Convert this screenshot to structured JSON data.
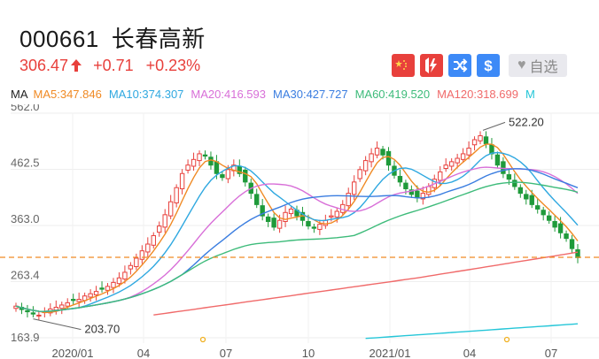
{
  "header": {
    "stock_code": "000661",
    "stock_name": "长春高新"
  },
  "quote": {
    "price": "306.47",
    "change": "+0.71",
    "change_pct": "+0.23%",
    "color": "#e8403c"
  },
  "toolbar": {
    "buttons": [
      {
        "name": "china-flag-icon",
        "color": "#e8403c"
      },
      {
        "name": "flash-trade-icon",
        "color": "#e8403c"
      },
      {
        "name": "shuffle-icon",
        "color": "#3d8af7"
      },
      {
        "name": "dollar-icon",
        "color": "#3d8af7"
      }
    ],
    "watch_label": "自选"
  },
  "ma_legend": {
    "label": "MA",
    "items": [
      {
        "text": "MA5:347.846",
        "color": "#f08a24"
      },
      {
        "text": "MA10:374.307",
        "color": "#2fa8e0"
      },
      {
        "text": "MA20:416.593",
        "color": "#d86fd8"
      },
      {
        "text": "MA30:427.727",
        "color": "#3a7de0"
      },
      {
        "text": "MA60:419.520",
        "color": "#3dbb7a"
      },
      {
        "text": "MA120:318.699",
        "color": "#f06a6a"
      },
      {
        "text": "M",
        "color": "#25c6d8"
      }
    ]
  },
  "chart_data": {
    "type": "candlestick",
    "y_ticks": [
      "562.0",
      "462.5",
      "363.0",
      "263.4",
      "163.9"
    ],
    "ylim": [
      163.9,
      562.0
    ],
    "x_ticks": [
      "2020/01",
      "04",
      "07",
      "10",
      "2021/01",
      "04",
      "07"
    ],
    "reference_line": 306.47,
    "annotations": {
      "high": "522.20",
      "low": "203.70"
    },
    "colors": {
      "up": "#e8403c",
      "down": "#1f9a3a",
      "ref_line": "#f08a24"
    }
  }
}
